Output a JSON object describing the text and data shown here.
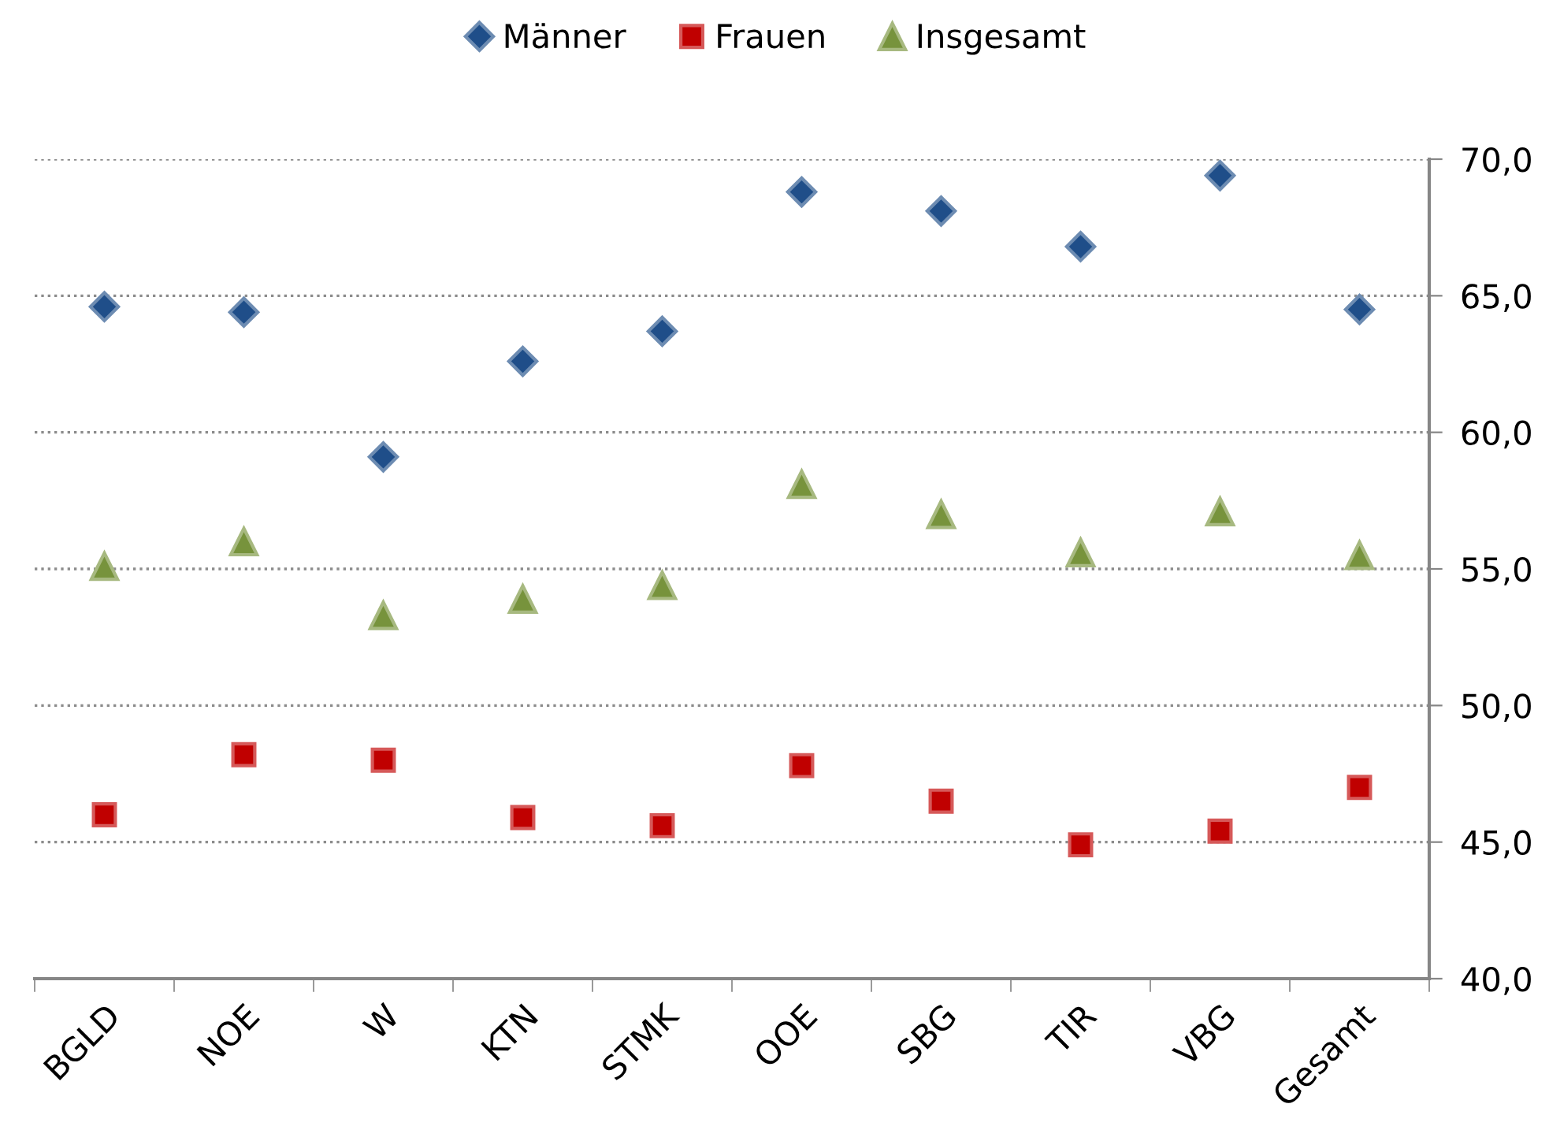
{
  "chart_data": {
    "type": "scatter",
    "categories": [
      "BGLD",
      "NOE",
      "W",
      "KTN",
      "STMK",
      "OOE",
      "SBG",
      "TIR",
      "VBG",
      "Gesamt"
    ],
    "series": [
      {
        "name": "Männer",
        "color": "#1f4e89",
        "marker": "diamond",
        "values": [
          64.6,
          64.4,
          59.1,
          62.6,
          63.7,
          68.8,
          68.1,
          66.8,
          69.4,
          64.5
        ]
      },
      {
        "name": "Frauen",
        "color": "#c00000",
        "marker": "square",
        "values": [
          46.0,
          48.2,
          48.0,
          45.9,
          45.6,
          47.8,
          46.5,
          44.9,
          45.4,
          47.0
        ]
      },
      {
        "name": "Insgesamt",
        "color": "#77933c",
        "marker": "triangle",
        "values": [
          55.1,
          56.0,
          53.3,
          53.9,
          54.4,
          58.1,
          57.0,
          55.6,
          57.1,
          55.5
        ]
      }
    ],
    "ylim": [
      40,
      70
    ],
    "yticks": [
      {
        "value": 40,
        "label": "40,0"
      },
      {
        "value": 45,
        "label": "45,0"
      },
      {
        "value": 50,
        "label": "50,0"
      },
      {
        "value": 55,
        "label": "55,0"
      },
      {
        "value": 60,
        "label": "60,0"
      },
      {
        "value": 65,
        "label": "65,0"
      },
      {
        "value": 70,
        "label": "70,0"
      }
    ],
    "grid": "y",
    "legend": "top"
  }
}
